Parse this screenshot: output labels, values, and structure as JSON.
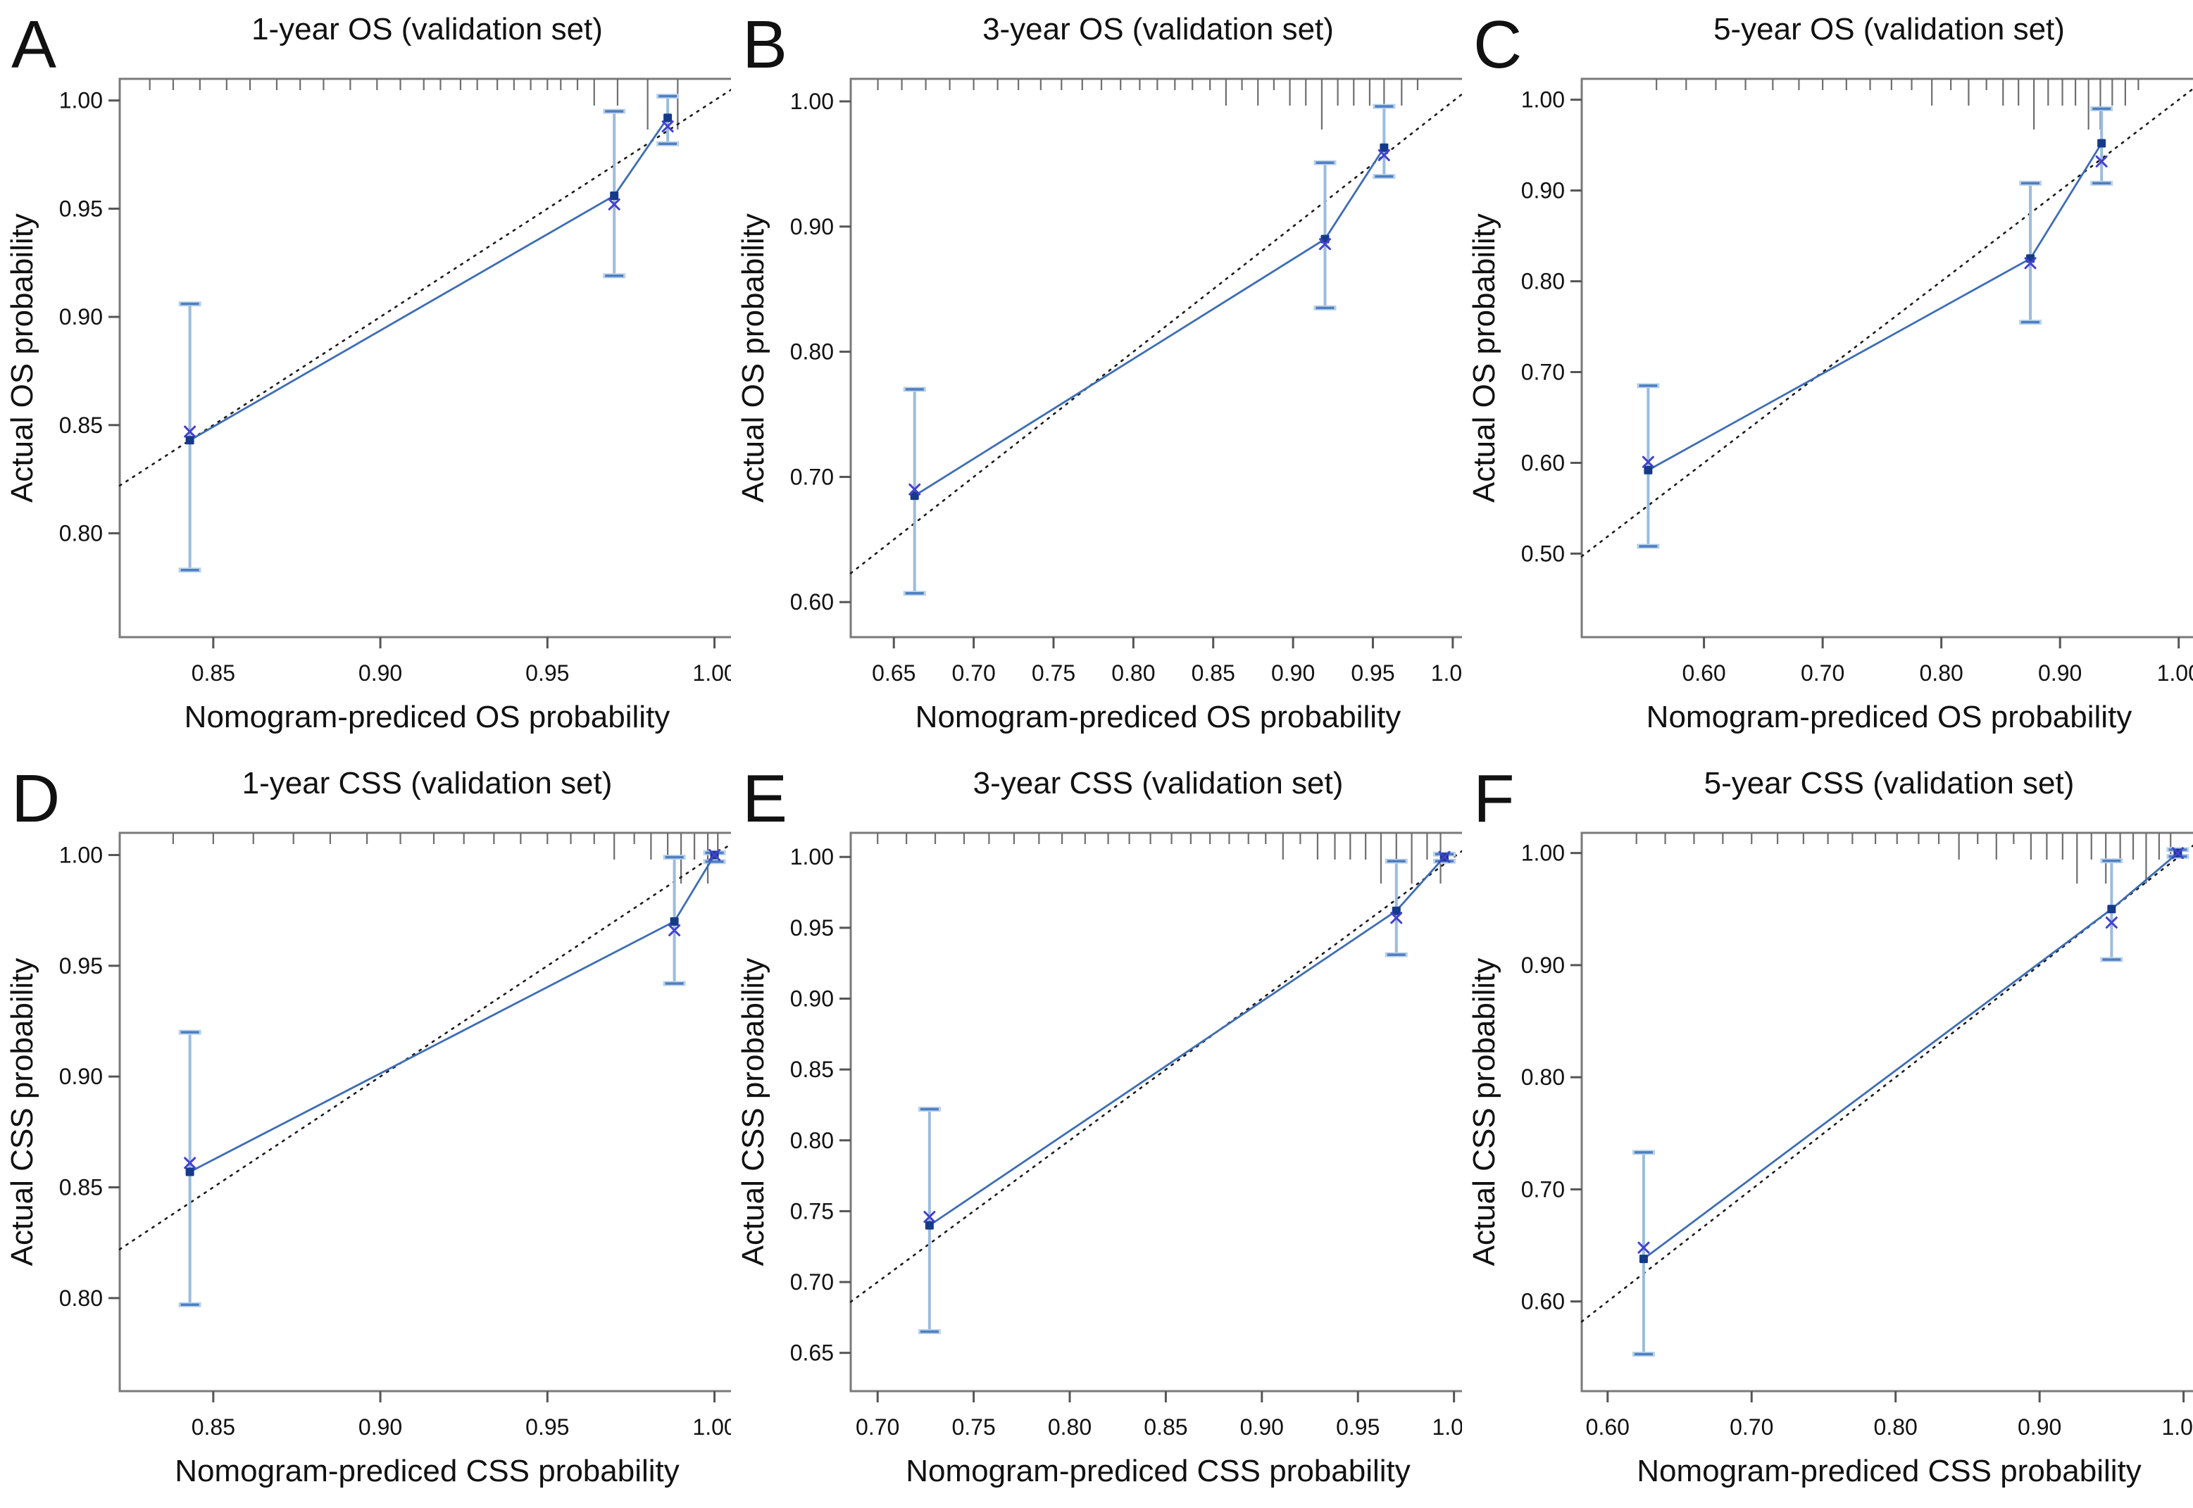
{
  "figure": {
    "description": "Calibration curves of nomogram in the validation set",
    "theme": {
      "line_color": "#3d6db5",
      "errorbar_color": "#9bbcde",
      "errorbar_cap_color": "#4d7ebf",
      "errorbar_cap_halo": "#b9d1ea",
      "marker_color": "#163a8a",
      "cross_color": "#4441d0",
      "diagonal_color": "#1a1a1a",
      "frame_color": "#7a7a7a",
      "tick_color": "#555555",
      "rug_color": "#6e6e6e",
      "text_color": "#111111",
      "background": "#ffffff"
    }
  },
  "chart_data": [
    {
      "type": "line",
      "letter": "A",
      "title": "1-year OS (validation set)",
      "xlabel": "Nomogram-prediced OS probability",
      "ylabel": "Actual OS probability",
      "xlim": [
        0.822,
        1.006
      ],
      "ylim": [
        0.752,
        1.01
      ],
      "xticks": [
        0.85,
        0.9,
        0.95,
        1.0
      ],
      "yticks": [
        0.8,
        0.85,
        0.9,
        0.95,
        1.0
      ],
      "identity_line": true,
      "grid": false,
      "legend": "none",
      "points": [
        {
          "x": 0.843,
          "y": 0.843,
          "lo": 0.783,
          "hi": 0.906,
          "bc": 0.847
        },
        {
          "x": 0.97,
          "y": 0.956,
          "lo": 0.919,
          "hi": 0.995,
          "bc": 0.952
        },
        {
          "x": 0.986,
          "y": 0.992,
          "lo": 0.98,
          "hi": 1.002,
          "bc": 0.988
        }
      ],
      "rug": [
        {
          "x": 0.831,
          "l": "s"
        },
        {
          "x": 0.838,
          "l": "s"
        },
        {
          "x": 0.846,
          "l": "s"
        },
        {
          "x": 0.854,
          "l": "s"
        },
        {
          "x": 0.861,
          "l": "s"
        },
        {
          "x": 0.869,
          "l": "s"
        },
        {
          "x": 0.876,
          "l": "s"
        },
        {
          "x": 0.883,
          "l": "s"
        },
        {
          "x": 0.891,
          "l": "s"
        },
        {
          "x": 0.899,
          "l": "s"
        },
        {
          "x": 0.906,
          "l": "s"
        },
        {
          "x": 0.913,
          "l": "s"
        },
        {
          "x": 0.918,
          "l": "s"
        },
        {
          "x": 0.924,
          "l": "s"
        },
        {
          "x": 0.929,
          "l": "s"
        },
        {
          "x": 0.935,
          "l": "s"
        },
        {
          "x": 0.94,
          "l": "s"
        },
        {
          "x": 0.945,
          "l": "s"
        },
        {
          "x": 0.95,
          "l": "s"
        },
        {
          "x": 0.954,
          "l": "s"
        },
        {
          "x": 0.959,
          "l": "s"
        },
        {
          "x": 0.964,
          "l": "m"
        },
        {
          "x": 0.971,
          "l": "m"
        },
        {
          "x": 0.98,
          "l": "l"
        },
        {
          "x": 0.989,
          "l": "l"
        }
      ]
    },
    {
      "type": "line",
      "letter": "B",
      "title": "3-year OS (validation set)",
      "xlabel": "Nomogram-prediced OS probability",
      "ylabel": "Actual OS probability",
      "xlim": [
        0.623,
        1.008
      ],
      "ylim": [
        0.572,
        1.018
      ],
      "xticks": [
        0.65,
        0.7,
        0.75,
        0.8,
        0.85,
        0.9,
        0.95,
        1.0
      ],
      "yticks": [
        0.6,
        0.7,
        0.8,
        0.9,
        1.0
      ],
      "identity_line": true,
      "grid": false,
      "legend": "none",
      "points": [
        {
          "x": 0.663,
          "y": 0.685,
          "lo": 0.607,
          "hi": 0.77,
          "bc": 0.69
        },
        {
          "x": 0.92,
          "y": 0.89,
          "lo": 0.835,
          "hi": 0.951,
          "bc": 0.886
        },
        {
          "x": 0.957,
          "y": 0.963,
          "lo": 0.94,
          "hi": 0.996,
          "bc": 0.957
        }
      ],
      "rug": [
        {
          "x": 0.64,
          "l": "s"
        },
        {
          "x": 0.655,
          "l": "s"
        },
        {
          "x": 0.67,
          "l": "s"
        },
        {
          "x": 0.685,
          "l": "s"
        },
        {
          "x": 0.7,
          "l": "s"
        },
        {
          "x": 0.715,
          "l": "s"
        },
        {
          "x": 0.728,
          "l": "s"
        },
        {
          "x": 0.742,
          "l": "s"
        },
        {
          "x": 0.755,
          "l": "s"
        },
        {
          "x": 0.768,
          "l": "s"
        },
        {
          "x": 0.78,
          "l": "s"
        },
        {
          "x": 0.792,
          "l": "s"
        },
        {
          "x": 0.804,
          "l": "s"
        },
        {
          "x": 0.815,
          "l": "s"
        },
        {
          "x": 0.826,
          "l": "s"
        },
        {
          "x": 0.837,
          "l": "s"
        },
        {
          "x": 0.848,
          "l": "s"
        },
        {
          "x": 0.858,
          "l": "m"
        },
        {
          "x": 0.868,
          "l": "s"
        },
        {
          "x": 0.878,
          "l": "m"
        },
        {
          "x": 0.888,
          "l": "s"
        },
        {
          "x": 0.898,
          "l": "m"
        },
        {
          "x": 0.908,
          "l": "m"
        },
        {
          "x": 0.918,
          "l": "l"
        },
        {
          "x": 0.928,
          "l": "m"
        },
        {
          "x": 0.938,
          "l": "m"
        },
        {
          "x": 0.948,
          "l": "m"
        },
        {
          "x": 0.957,
          "l": "l"
        },
        {
          "x": 0.968,
          "l": "m"
        },
        {
          "x": 0.978,
          "l": "s"
        }
      ]
    },
    {
      "type": "line",
      "letter": "C",
      "title": "5-year OS (validation set)",
      "xlabel": "Nomogram-prediced OS probability",
      "ylabel": "Actual OS probability",
      "xlim": [
        0.497,
        1.015
      ],
      "ylim": [
        0.408,
        1.023
      ],
      "xticks": [
        0.6,
        0.7,
        0.8,
        0.9,
        1.0
      ],
      "yticks": [
        0.5,
        0.6,
        0.7,
        0.8,
        0.9,
        1.0
      ],
      "identity_line": true,
      "grid": false,
      "legend": "none",
      "points": [
        {
          "x": 0.553,
          "y": 0.592,
          "lo": 0.508,
          "hi": 0.685,
          "bc": 0.601
        },
        {
          "x": 0.875,
          "y": 0.825,
          "lo": 0.755,
          "hi": 0.908,
          "bc": 0.82
        },
        {
          "x": 0.935,
          "y": 0.952,
          "lo": 0.908,
          "hi": 0.99,
          "bc": 0.932
        }
      ],
      "rug": [
        {
          "x": 0.56,
          "l": "s"
        },
        {
          "x": 0.585,
          "l": "s"
        },
        {
          "x": 0.61,
          "l": "s"
        },
        {
          "x": 0.635,
          "l": "s"
        },
        {
          "x": 0.658,
          "l": "s"
        },
        {
          "x": 0.68,
          "l": "s"
        },
        {
          "x": 0.7,
          "l": "s"
        },
        {
          "x": 0.72,
          "l": "s"
        },
        {
          "x": 0.74,
          "l": "s"
        },
        {
          "x": 0.758,
          "l": "s"
        },
        {
          "x": 0.775,
          "l": "s"
        },
        {
          "x": 0.792,
          "l": "m"
        },
        {
          "x": 0.808,
          "l": "s"
        },
        {
          "x": 0.823,
          "l": "m"
        },
        {
          "x": 0.838,
          "l": "s"
        },
        {
          "x": 0.852,
          "l": "m"
        },
        {
          "x": 0.865,
          "l": "m"
        },
        {
          "x": 0.878,
          "l": "l"
        },
        {
          "x": 0.89,
          "l": "m"
        },
        {
          "x": 0.902,
          "l": "m"
        },
        {
          "x": 0.913,
          "l": "m"
        },
        {
          "x": 0.924,
          "l": "l"
        },
        {
          "x": 0.934,
          "l": "l"
        },
        {
          "x": 0.944,
          "l": "m"
        },
        {
          "x": 0.955,
          "l": "m"
        },
        {
          "x": 0.966,
          "l": "s"
        }
      ]
    },
    {
      "type": "line",
      "letter": "D",
      "title": "1-year CSS (validation set)",
      "xlabel": "Nomogram-prediced CSS probability",
      "ylabel": "Actual CSS probability",
      "xlim": [
        0.822,
        1.006
      ],
      "ylim": [
        0.758,
        1.01
      ],
      "xticks": [
        0.85,
        0.9,
        0.95,
        1.0
      ],
      "yticks": [
        0.8,
        0.85,
        0.9,
        0.95,
        1.0
      ],
      "identity_line": true,
      "grid": false,
      "legend": "none",
      "points": [
        {
          "x": 0.843,
          "y": 0.857,
          "lo": 0.797,
          "hi": 0.92,
          "bc": 0.861
        },
        {
          "x": 0.988,
          "y": 0.97,
          "lo": 0.942,
          "hi": 0.999,
          "bc": 0.966
        },
        {
          "x": 1.0,
          "y": 1.0,
          "lo": 0.997,
          "hi": 1.001,
          "bc": 1.0
        }
      ],
      "rug": [
        {
          "x": 0.838,
          "l": "s"
        },
        {
          "x": 0.85,
          "l": "s"
        },
        {
          "x": 0.862,
          "l": "s"
        },
        {
          "x": 0.874,
          "l": "s"
        },
        {
          "x": 0.885,
          "l": "s"
        },
        {
          "x": 0.896,
          "l": "s"
        },
        {
          "x": 0.906,
          "l": "s"
        },
        {
          "x": 0.916,
          "l": "s"
        },
        {
          "x": 0.925,
          "l": "s"
        },
        {
          "x": 0.934,
          "l": "s"
        },
        {
          "x": 0.942,
          "l": "s"
        },
        {
          "x": 0.95,
          "l": "s"
        },
        {
          "x": 0.957,
          "l": "s"
        },
        {
          "x": 0.964,
          "l": "s"
        },
        {
          "x": 0.97,
          "l": "m"
        },
        {
          "x": 0.976,
          "l": "s"
        },
        {
          "x": 0.981,
          "l": "m"
        },
        {
          "x": 0.986,
          "l": "m"
        },
        {
          "x": 0.99,
          "l": "l"
        },
        {
          "x": 0.994,
          "l": "m"
        },
        {
          "x": 0.998,
          "l": "l"
        },
        {
          "x": 1.001,
          "l": "m"
        }
      ]
    },
    {
      "type": "line",
      "letter": "E",
      "title": "3-year CSS (validation set)",
      "xlabel": "Nomogram-prediced CSS probability",
      "ylabel": "Actual CSS probability",
      "xlim": [
        0.686,
        1.006
      ],
      "ylim": [
        0.623,
        1.017
      ],
      "xticks": [
        0.7,
        0.75,
        0.8,
        0.85,
        0.9,
        0.95,
        1.0
      ],
      "yticks": [
        0.65,
        0.7,
        0.75,
        0.8,
        0.85,
        0.9,
        0.95,
        1.0
      ],
      "identity_line": true,
      "grid": false,
      "legend": "none",
      "points": [
        {
          "x": 0.727,
          "y": 0.74,
          "lo": 0.665,
          "hi": 0.822,
          "bc": 0.746
        },
        {
          "x": 0.97,
          "y": 0.962,
          "lo": 0.931,
          "hi": 0.997,
          "bc": 0.957
        },
        {
          "x": 0.995,
          "y": 1.0,
          "lo": 0.997,
          "hi": 1.002,
          "bc": 1.0
        }
      ],
      "rug": [
        {
          "x": 0.7,
          "l": "s"
        },
        {
          "x": 0.715,
          "l": "s"
        },
        {
          "x": 0.73,
          "l": "s"
        },
        {
          "x": 0.745,
          "l": "s"
        },
        {
          "x": 0.758,
          "l": "s"
        },
        {
          "x": 0.771,
          "l": "s"
        },
        {
          "x": 0.784,
          "l": "s"
        },
        {
          "x": 0.796,
          "l": "s"
        },
        {
          "x": 0.808,
          "l": "s"
        },
        {
          "x": 0.82,
          "l": "s"
        },
        {
          "x": 0.831,
          "l": "s"
        },
        {
          "x": 0.842,
          "l": "s"
        },
        {
          "x": 0.853,
          "l": "s"
        },
        {
          "x": 0.863,
          "l": "s"
        },
        {
          "x": 0.873,
          "l": "s"
        },
        {
          "x": 0.883,
          "l": "s"
        },
        {
          "x": 0.893,
          "l": "s"
        },
        {
          "x": 0.902,
          "l": "s"
        },
        {
          "x": 0.911,
          "l": "m"
        },
        {
          "x": 0.92,
          "l": "s"
        },
        {
          "x": 0.929,
          "l": "m"
        },
        {
          "x": 0.938,
          "l": "m"
        },
        {
          "x": 0.946,
          "l": "m"
        },
        {
          "x": 0.954,
          "l": "m"
        },
        {
          "x": 0.962,
          "l": "l"
        },
        {
          "x": 0.97,
          "l": "m"
        },
        {
          "x": 0.978,
          "l": "l"
        },
        {
          "x": 0.986,
          "l": "m"
        },
        {
          "x": 0.993,
          "l": "l"
        }
      ]
    },
    {
      "type": "line",
      "letter": "F",
      "title": "5-year CSS (validation set)",
      "xlabel": "Nomogram-prediced CSS probability",
      "ylabel": "Actual CSS probability",
      "xlim": [
        0.582,
        1.009
      ],
      "ylim": [
        0.52,
        1.018
      ],
      "xticks": [
        0.6,
        0.7,
        0.8,
        0.9,
        1.0
      ],
      "yticks": [
        0.6,
        0.7,
        0.8,
        0.9,
        1.0
      ],
      "identity_line": true,
      "grid": false,
      "legend": "none",
      "points": [
        {
          "x": 0.625,
          "y": 0.638,
          "lo": 0.553,
          "hi": 0.733,
          "bc": 0.648
        },
        {
          "x": 0.95,
          "y": 0.95,
          "lo": 0.905,
          "hi": 0.993,
          "bc": 0.938
        },
        {
          "x": 0.996,
          "y": 1.0,
          "lo": 0.997,
          "hi": 1.003,
          "bc": 1.0
        }
      ],
      "rug": [
        {
          "x": 0.62,
          "l": "s"
        },
        {
          "x": 0.64,
          "l": "s"
        },
        {
          "x": 0.66,
          "l": "s"
        },
        {
          "x": 0.68,
          "l": "s"
        },
        {
          "x": 0.7,
          "l": "s"
        },
        {
          "x": 0.718,
          "l": "s"
        },
        {
          "x": 0.736,
          "l": "s"
        },
        {
          "x": 0.753,
          "l": "s"
        },
        {
          "x": 0.77,
          "l": "s"
        },
        {
          "x": 0.786,
          "l": "s"
        },
        {
          "x": 0.801,
          "l": "s"
        },
        {
          "x": 0.816,
          "l": "s"
        },
        {
          "x": 0.83,
          "l": "s"
        },
        {
          "x": 0.844,
          "l": "m"
        },
        {
          "x": 0.857,
          "l": "s"
        },
        {
          "x": 0.87,
          "l": "m"
        },
        {
          "x": 0.882,
          "l": "s"
        },
        {
          "x": 0.894,
          "l": "m"
        },
        {
          "x": 0.905,
          "l": "m"
        },
        {
          "x": 0.916,
          "l": "m"
        },
        {
          "x": 0.926,
          "l": "l"
        },
        {
          "x": 0.936,
          "l": "m"
        },
        {
          "x": 0.946,
          "l": "l"
        },
        {
          "x": 0.956,
          "l": "m"
        },
        {
          "x": 0.965,
          "l": "m"
        },
        {
          "x": 0.974,
          "l": "l"
        },
        {
          "x": 0.983,
          "l": "m"
        },
        {
          "x": 0.991,
          "l": "m"
        }
      ]
    }
  ]
}
